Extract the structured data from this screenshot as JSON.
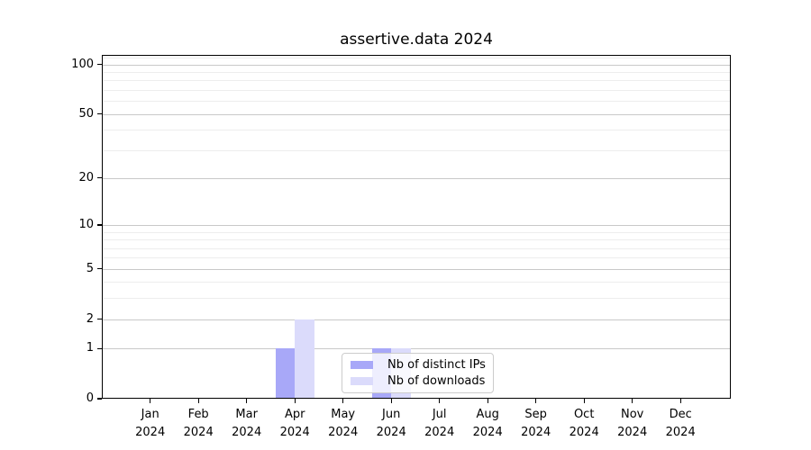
{
  "title": "assertive.data 2024",
  "chart_data": {
    "type": "bar",
    "title": "assertive.data 2024",
    "categories": [
      "Jan",
      "Feb",
      "Mar",
      "Apr",
      "May",
      "Jun",
      "Jul",
      "Aug",
      "Sep",
      "Oct",
      "Nov",
      "Dec"
    ],
    "year_label": "2024",
    "series": [
      {
        "name": "Nb of distinct IPs",
        "values": [
          0,
          0,
          0,
          1,
          0,
          1,
          0,
          0,
          0,
          0,
          0,
          0
        ],
        "color": "#a8a8f8"
      },
      {
        "name": "Nb of downloads",
        "values": [
          0,
          0,
          0,
          2,
          0,
          1,
          0,
          0,
          0,
          0,
          0,
          0
        ],
        "color": "#dbdbfb"
      }
    ],
    "yscale": "log1p",
    "ylim": [
      0,
      114
    ],
    "y_major_ticks": [
      100,
      50,
      20,
      10,
      5,
      2,
      1,
      0
    ],
    "y_minor_ticks": [
      110,
      90,
      80,
      70,
      60,
      40,
      30,
      9,
      8,
      7,
      6,
      4,
      3
    ],
    "grid": true,
    "legend_position": "lower center",
    "colors": {
      "major_grid": "#c9c9c9",
      "minor_grid": "#ededed",
      "axis": "#000000",
      "background": "#ffffff"
    }
  },
  "legend": {
    "items": [
      {
        "label": "Nb of distinct IPs",
        "color": "#a8a8f8"
      },
      {
        "label": "Nb of downloads",
        "color": "#dbdbfb"
      }
    ]
  }
}
